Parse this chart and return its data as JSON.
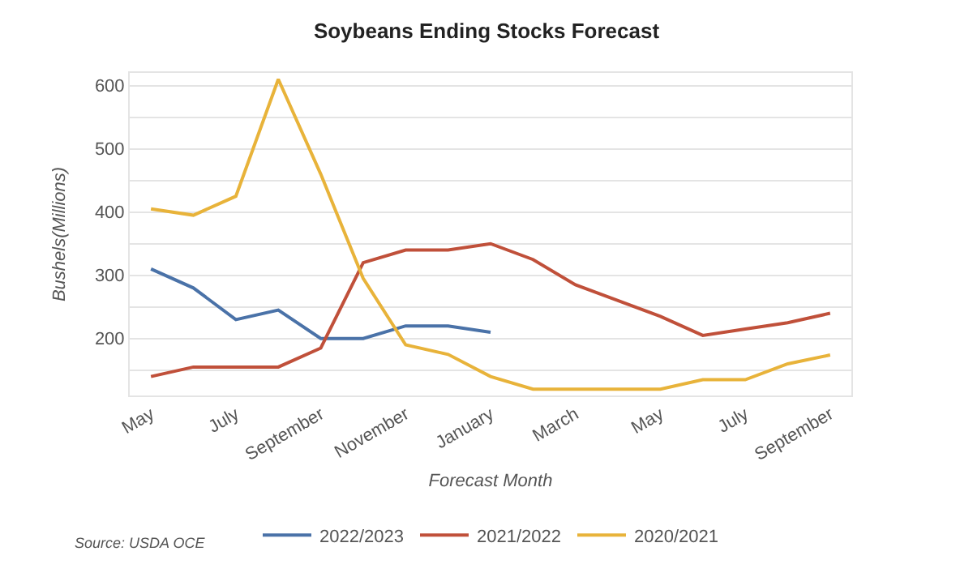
{
  "chart_data": {
    "type": "line",
    "title": "Soybeans Ending Stocks Forecast",
    "xlabel": "Forecast Month",
    "ylabel": "Bushels(Millions)",
    "categories": [
      "May",
      null,
      "July",
      null,
      "September",
      null,
      "November",
      null,
      "January",
      null,
      "March",
      null,
      "May",
      null,
      "July",
      null,
      "September"
    ],
    "series": [
      {
        "name": "2022/2023",
        "color": "#4a72a8",
        "values": [
          310,
          280,
          230,
          245,
          200,
          200,
          220,
          220,
          210,
          null,
          null,
          null,
          null,
          null,
          null,
          null,
          null
        ]
      },
      {
        "name": "2021/2022",
        "color": "#c0503a",
        "values": [
          140,
          155,
          155,
          155,
          185,
          320,
          340,
          340,
          350,
          325,
          285,
          260,
          235,
          205,
          215,
          225,
          240
        ]
      },
      {
        "name": "2020/2021",
        "color": "#e8b33a",
        "values": [
          405,
          395,
          425,
          610,
          460,
          295,
          190,
          175,
          140,
          120,
          120,
          120,
          120,
          135,
          135,
          160,
          174
        ]
      }
    ],
    "ylim": [
      110,
      620
    ],
    "yticks": [
      {
        "value": 150,
        "label": null
      },
      200,
      {
        "value": 250,
        "label": null
      },
      300,
      {
        "value": 350,
        "label": null
      },
      400,
      {
        "value": 450,
        "label": null
      },
      500,
      {
        "value": 550,
        "label": null
      },
      600
    ],
    "grid": "y",
    "legend": "bottom",
    "marker": "none",
    "line_style": "solid",
    "annotations": [
      "Source: USDA OCE"
    ]
  }
}
